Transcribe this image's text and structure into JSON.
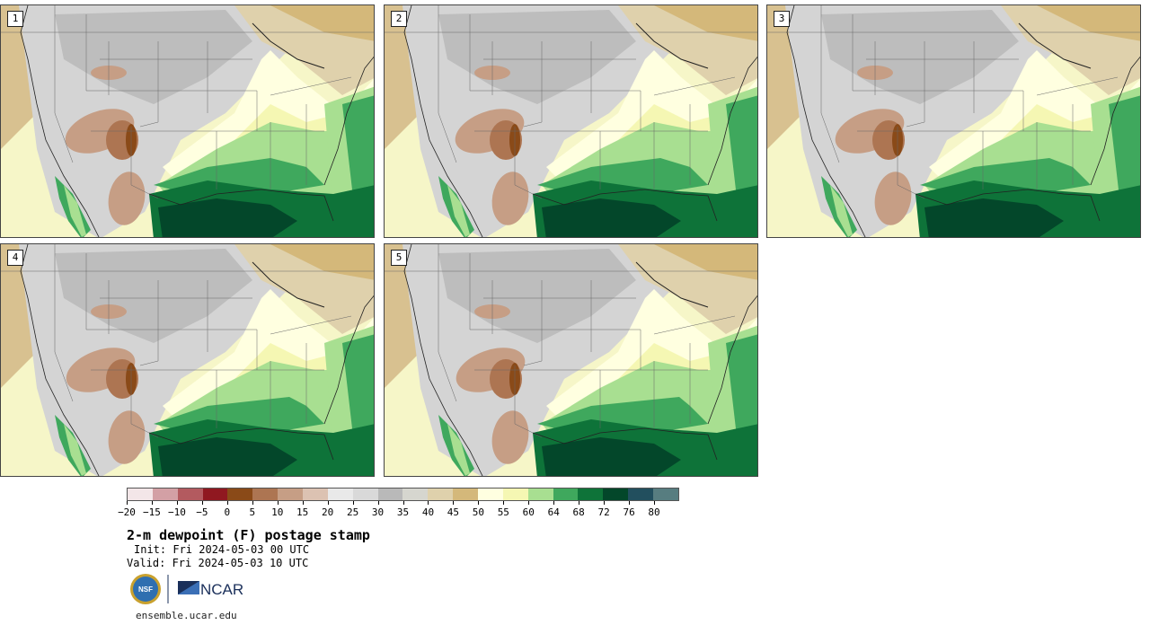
{
  "panels": [
    {
      "label": "1"
    },
    {
      "label": "2"
    },
    {
      "label": "3"
    },
    {
      "label": "4"
    },
    {
      "label": "5"
    }
  ],
  "colorbar": {
    "colors": [
      "#f3e6e8",
      "#d3a0a5",
      "#b35a5f",
      "#901820",
      "#8a4a18",
      "#ad7552",
      "#c69e85",
      "#dcc2b2",
      "#e9e9e9",
      "#d9d9d9",
      "#b9b9b9",
      "#d6d6cf",
      "#dfd1ac",
      "#d4b87a",
      "#ffffe0",
      "#f5f7b3",
      "#a8df91",
      "#3fa85d",
      "#0e7339",
      "#03472a",
      "#224f5e",
      "#577d80"
    ],
    "tick_labels": [
      "−20",
      "−15",
      "−10",
      "−5",
      "0",
      "5",
      "10",
      "15",
      "20",
      "25",
      "30",
      "35",
      "40",
      "45",
      "50",
      "55",
      "60",
      "64",
      "68",
      "72",
      "76",
      "80"
    ]
  },
  "title": "2-m dewpoint (F) postage stamp",
  "init": "Init: Fri 2024-05-03 00 UTC",
  "valid": "Valid: Fri 2024-05-03 10 UTC",
  "logos": {
    "nsf": "NSF",
    "ncar": "NCAR"
  },
  "site": "ensemble.ucar.edu"
}
